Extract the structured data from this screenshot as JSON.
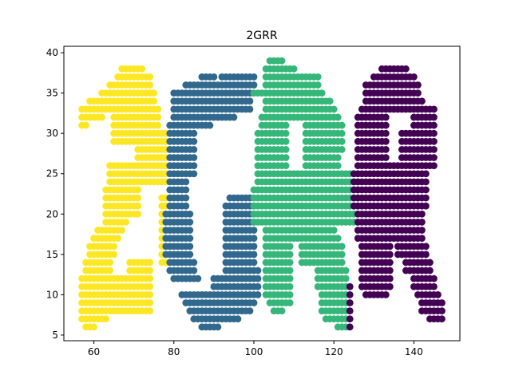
{
  "chart_data": {
    "type": "scatter",
    "title": "2GRR",
    "xlabel": "",
    "ylabel": "",
    "xlim": [
      52.5,
      151.5
    ],
    "ylim": [
      4.3,
      40.8
    ],
    "xticks": [
      60,
      80,
      100,
      120,
      140
    ],
    "yticks": [
      5,
      10,
      15,
      20,
      25,
      30,
      35,
      40
    ],
    "grid": false,
    "legend": "none",
    "series_colors": {
      "yellow": "#fde725",
      "blue": "#31688e",
      "green": "#35b779",
      "purple": "#440154"
    },
    "shapes": [
      {
        "color_key": "yellow",
        "rects": [
          [
            67,
            38,
            72,
            38
          ],
          [
            66,
            37,
            74,
            37
          ],
          [
            64,
            36,
            74,
            36
          ],
          [
            62,
            35,
            75,
            35
          ],
          [
            59,
            34,
            75,
            34
          ],
          [
            57,
            33,
            75,
            33
          ],
          [
            57,
            32,
            62,
            32
          ],
          [
            57,
            31,
            58,
            31
          ],
          [
            65,
            29,
            76,
            33
          ],
          [
            71,
            24,
            78,
            30
          ],
          [
            64,
            25,
            73,
            26
          ],
          [
            64,
            24,
            70,
            24
          ],
          [
            63,
            20,
            71,
            23
          ],
          [
            63,
            19,
            68,
            19
          ],
          [
            61,
            18,
            67,
            18
          ],
          [
            60,
            17,
            66,
            17
          ],
          [
            59,
            15,
            65,
            16
          ],
          [
            58,
            13,
            64,
            14
          ],
          [
            69,
            13,
            74,
            14
          ],
          [
            57,
            8,
            74,
            12
          ],
          [
            57,
            7,
            63,
            7
          ],
          [
            58,
            6,
            60,
            6
          ],
          [
            77,
            14,
            79,
            22
          ]
        ]
      },
      {
        "color_key": "blue",
        "rects": [
          [
            87,
            37,
            90,
            37
          ],
          [
            92,
            37,
            100,
            37
          ],
          [
            83,
            36,
            100,
            36
          ],
          [
            80,
            33,
            99,
            35
          ],
          [
            80,
            32,
            95,
            32
          ],
          [
            79,
            31,
            89,
            31
          ],
          [
            79,
            25,
            85,
            30
          ],
          [
            79,
            21,
            83,
            24
          ],
          [
            78,
            15,
            84,
            20
          ],
          [
            79,
            13,
            85,
            14
          ],
          [
            80,
            12,
            86,
            12
          ],
          [
            94,
            22,
            99,
            22
          ],
          [
            93,
            14,
            100,
            21
          ],
          [
            93,
            13,
            101,
            13
          ],
          [
            90,
            11,
            101,
            12
          ],
          [
            82,
            10,
            101,
            10
          ],
          [
            83,
            9,
            100,
            9
          ],
          [
            84,
            8,
            99,
            8
          ],
          [
            85,
            7,
            96,
            7
          ],
          [
            87,
            6,
            91,
            6
          ]
        ]
      },
      {
        "color_key": "green",
        "rects": [
          [
            104,
            39,
            107,
            39
          ],
          [
            103,
            38,
            110,
            38
          ],
          [
            103,
            36,
            116,
            37
          ],
          [
            100,
            35,
            117,
            35
          ],
          [
            103,
            34,
            119,
            34
          ],
          [
            103,
            33,
            120,
            33
          ],
          [
            102,
            32,
            121,
            32
          ],
          [
            102,
            31,
            108,
            31
          ],
          [
            113,
            28,
            122,
            31
          ],
          [
            101,
            26,
            108,
            30
          ],
          [
            113,
            25,
            121,
            27
          ],
          [
            101,
            24,
            126,
            25
          ],
          [
            100,
            19,
            126,
            23
          ],
          [
            103,
            18,
            120,
            18
          ],
          [
            103,
            17,
            121,
            17
          ],
          [
            103,
            14,
            109,
            16
          ],
          [
            112,
            14,
            122,
            16
          ],
          [
            103,
            10,
            109,
            13
          ],
          [
            116,
            11,
            123,
            13
          ],
          [
            104,
            9,
            109,
            9
          ],
          [
            117,
            8,
            123,
            10
          ],
          [
            105,
            8,
            107,
            8
          ],
          [
            118,
            7,
            123,
            7
          ],
          [
            121,
            6,
            123,
            6
          ]
        ]
      },
      {
        "color_key": "purple",
        "rects": [
          [
            132,
            38,
            138,
            38
          ],
          [
            130,
            37,
            140,
            37
          ],
          [
            128,
            35,
            141,
            36
          ],
          [
            128,
            34,
            142,
            34
          ],
          [
            127,
            33,
            143,
            33
          ],
          [
            126,
            32,
            133,
            32
          ],
          [
            140,
            31,
            145,
            33
          ],
          [
            126,
            27,
            133,
            31
          ],
          [
            137,
            27,
            145,
            30
          ],
          [
            126,
            26,
            145,
            26
          ],
          [
            125,
            21,
            143,
            25
          ],
          [
            126,
            17,
            142,
            20
          ],
          [
            127,
            15,
            134,
            16
          ],
          [
            136,
            15,
            143,
            16
          ],
          [
            127,
            13,
            134,
            14
          ],
          [
            138,
            13,
            144,
            14
          ],
          [
            127,
            11,
            134,
            12
          ],
          [
            140,
            11,
            145,
            12
          ],
          [
            128,
            10,
            133,
            10
          ],
          [
            141,
            10,
            146,
            10
          ],
          [
            142,
            8,
            147,
            9
          ],
          [
            144,
            7,
            147,
            7
          ],
          [
            124,
            6,
            124,
            11
          ]
        ]
      }
    ]
  }
}
